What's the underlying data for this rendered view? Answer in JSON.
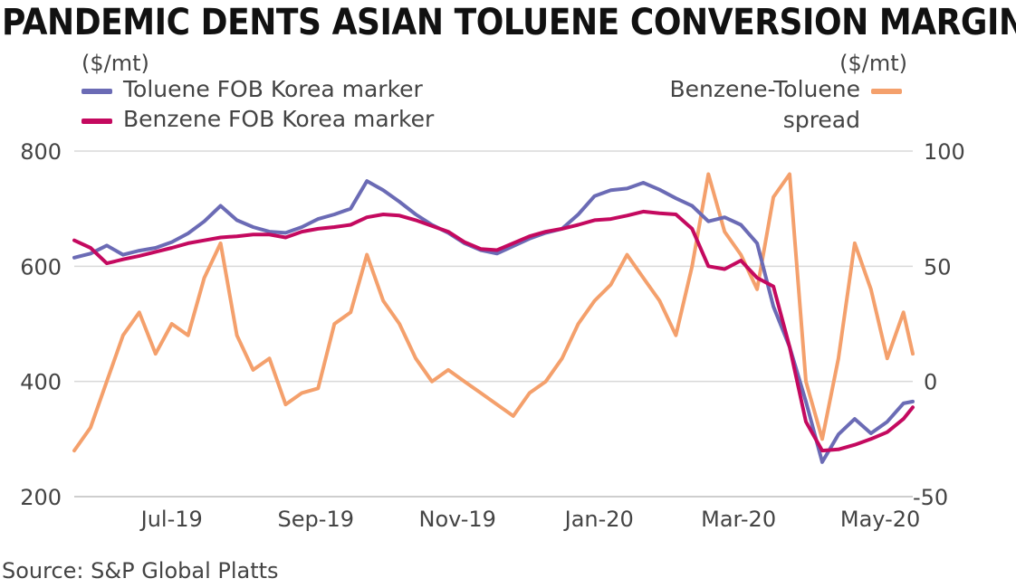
{
  "title": "PANDEMIC DENTS ASIAN TOLUENE CONVERSION MARGINS",
  "source": "Source: S&P Global Platts",
  "colors": {
    "toluene": "#6b6bb5",
    "benzene": "#c4095f",
    "spread": "#f4a06c",
    "grid": "#d9d9d9"
  },
  "chart_data": {
    "type": "line",
    "title": "PANDEMIC DENTS ASIAN TOLUENE CONVERSION MARGINS",
    "left_axis": {
      "unit": "($/mt)",
      "range": [
        200,
        800
      ],
      "ticks": [
        "200",
        "400",
        "600",
        "800"
      ]
    },
    "right_axis": {
      "unit": "($/mt)",
      "range": [
        -50,
        100
      ],
      "ticks": [
        "-50",
        "0",
        "50",
        "100"
      ]
    },
    "x_range": [
      "2019-05-20",
      "2020-05-15"
    ],
    "x_ticks": [
      {
        "label": "Jul-19",
        "date": "2019-07-01"
      },
      {
        "label": "Sep-19",
        "date": "2019-09-01"
      },
      {
        "label": "Nov-19",
        "date": "2019-11-01"
      },
      {
        "label": "Jan-20",
        "date": "2020-01-01"
      },
      {
        "label": "Mar-20",
        "date": "2020-03-01"
      },
      {
        "label": "May-20",
        "date": "2020-05-01"
      }
    ],
    "grid": "horizontal",
    "series": [
      {
        "name": "Toluene FOB Korea marker",
        "axis": "left",
        "points": [
          [
            "2019-05-20",
            615
          ],
          [
            "2019-05-27",
            622
          ],
          [
            "2019-06-03",
            636
          ],
          [
            "2019-06-10",
            620
          ],
          [
            "2019-06-17",
            627
          ],
          [
            "2019-06-24",
            632
          ],
          [
            "2019-07-01",
            642
          ],
          [
            "2019-07-08",
            657
          ],
          [
            "2019-07-15",
            678
          ],
          [
            "2019-07-22",
            705
          ],
          [
            "2019-07-29",
            680
          ],
          [
            "2019-08-05",
            668
          ],
          [
            "2019-08-12",
            660
          ],
          [
            "2019-08-19",
            658
          ],
          [
            "2019-08-26",
            668
          ],
          [
            "2019-09-02",
            682
          ],
          [
            "2019-09-09",
            690
          ],
          [
            "2019-09-16",
            700
          ],
          [
            "2019-09-23",
            748
          ],
          [
            "2019-09-30",
            732
          ],
          [
            "2019-10-07",
            712
          ],
          [
            "2019-10-14",
            690
          ],
          [
            "2019-10-21",
            672
          ],
          [
            "2019-10-28",
            658
          ],
          [
            "2019-11-04",
            640
          ],
          [
            "2019-11-11",
            628
          ],
          [
            "2019-11-18",
            622
          ],
          [
            "2019-11-25",
            635
          ],
          [
            "2019-12-02",
            648
          ],
          [
            "2019-12-09",
            658
          ],
          [
            "2019-12-16",
            665
          ],
          [
            "2019-12-23",
            690
          ],
          [
            "2019-12-30",
            722
          ],
          [
            "2020-01-06",
            732
          ],
          [
            "2020-01-13",
            735
          ],
          [
            "2020-01-20",
            745
          ],
          [
            "2020-01-27",
            733
          ],
          [
            "2020-02-03",
            718
          ],
          [
            "2020-02-10",
            705
          ],
          [
            "2020-02-17",
            678
          ],
          [
            "2020-02-24",
            685
          ],
          [
            "2020-03-02",
            672
          ],
          [
            "2020-03-09",
            640
          ],
          [
            "2020-03-16",
            530
          ],
          [
            "2020-03-23",
            460
          ],
          [
            "2020-03-30",
            365
          ],
          [
            "2020-04-06",
            260
          ],
          [
            "2020-04-13",
            308
          ],
          [
            "2020-04-20",
            335
          ],
          [
            "2020-04-27",
            310
          ],
          [
            "2020-05-04",
            330
          ],
          [
            "2020-05-11",
            362
          ],
          [
            "2020-05-15",
            365
          ]
        ]
      },
      {
        "name": "Benzene FOB Korea marker",
        "axis": "left",
        "points": [
          [
            "2019-05-20",
            645
          ],
          [
            "2019-05-27",
            632
          ],
          [
            "2019-06-03",
            605
          ],
          [
            "2019-06-10",
            612
          ],
          [
            "2019-06-17",
            618
          ],
          [
            "2019-06-24",
            625
          ],
          [
            "2019-07-01",
            632
          ],
          [
            "2019-07-08",
            640
          ],
          [
            "2019-07-15",
            645
          ],
          [
            "2019-07-22",
            650
          ],
          [
            "2019-07-29",
            652
          ],
          [
            "2019-08-05",
            655
          ],
          [
            "2019-08-12",
            655
          ],
          [
            "2019-08-19",
            650
          ],
          [
            "2019-08-26",
            660
          ],
          [
            "2019-09-02",
            665
          ],
          [
            "2019-09-09",
            668
          ],
          [
            "2019-09-16",
            672
          ],
          [
            "2019-09-23",
            685
          ],
          [
            "2019-09-30",
            690
          ],
          [
            "2019-10-07",
            688
          ],
          [
            "2019-10-14",
            680
          ],
          [
            "2019-10-21",
            670
          ],
          [
            "2019-10-28",
            660
          ],
          [
            "2019-11-04",
            642
          ],
          [
            "2019-11-11",
            630
          ],
          [
            "2019-11-18",
            628
          ],
          [
            "2019-11-25",
            640
          ],
          [
            "2019-12-02",
            652
          ],
          [
            "2019-12-09",
            660
          ],
          [
            "2019-12-16",
            665
          ],
          [
            "2019-12-23",
            672
          ],
          [
            "2019-12-30",
            680
          ],
          [
            "2020-01-06",
            682
          ],
          [
            "2020-01-13",
            688
          ],
          [
            "2020-01-20",
            695
          ],
          [
            "2020-01-27",
            692
          ],
          [
            "2020-02-03",
            690
          ],
          [
            "2020-02-10",
            665
          ],
          [
            "2020-02-17",
            600
          ],
          [
            "2020-02-24",
            595
          ],
          [
            "2020-03-02",
            610
          ],
          [
            "2020-03-09",
            580
          ],
          [
            "2020-03-16",
            565
          ],
          [
            "2020-03-23",
            460
          ],
          [
            "2020-03-30",
            330
          ],
          [
            "2020-04-06",
            280
          ],
          [
            "2020-04-13",
            282
          ],
          [
            "2020-04-20",
            290
          ],
          [
            "2020-04-27",
            300
          ],
          [
            "2020-05-04",
            312
          ],
          [
            "2020-05-11",
            335
          ],
          [
            "2020-05-15",
            355
          ]
        ]
      },
      {
        "name": "Benzene-Toluene spread",
        "axis": "right",
        "points": [
          [
            "2019-05-20",
            -30
          ],
          [
            "2019-05-27",
            -20
          ],
          [
            "2019-06-03",
            0
          ],
          [
            "2019-06-10",
            20
          ],
          [
            "2019-06-17",
            30
          ],
          [
            "2019-06-24",
            12
          ],
          [
            "2019-07-01",
            25
          ],
          [
            "2019-07-08",
            20
          ],
          [
            "2019-07-15",
            45
          ],
          [
            "2019-07-22",
            60
          ],
          [
            "2019-07-29",
            20
          ],
          [
            "2019-08-05",
            5
          ],
          [
            "2019-08-12",
            10
          ],
          [
            "2019-08-19",
            -10
          ],
          [
            "2019-08-26",
            -5
          ],
          [
            "2019-09-02",
            -3
          ],
          [
            "2019-09-09",
            25
          ],
          [
            "2019-09-16",
            30
          ],
          [
            "2019-09-23",
            55
          ],
          [
            "2019-09-30",
            35
          ],
          [
            "2019-10-07",
            25
          ],
          [
            "2019-10-14",
            10
          ],
          [
            "2019-10-21",
            0
          ],
          [
            "2019-10-28",
            5
          ],
          [
            "2019-11-04",
            0
          ],
          [
            "2019-11-11",
            -5
          ],
          [
            "2019-11-18",
            -10
          ],
          [
            "2019-11-25",
            -15
          ],
          [
            "2019-12-02",
            -5
          ],
          [
            "2019-12-09",
            0
          ],
          [
            "2019-12-16",
            10
          ],
          [
            "2019-12-23",
            25
          ],
          [
            "2019-12-30",
            35
          ],
          [
            "2020-01-06",
            42
          ],
          [
            "2020-01-13",
            55
          ],
          [
            "2020-01-20",
            45
          ],
          [
            "2020-01-27",
            35
          ],
          [
            "2020-02-03",
            20
          ],
          [
            "2020-02-10",
            50
          ],
          [
            "2020-02-17",
            90
          ],
          [
            "2020-02-24",
            65
          ],
          [
            "2020-03-02",
            55
          ],
          [
            "2020-03-09",
            40
          ],
          [
            "2020-03-16",
            80
          ],
          [
            "2020-03-23",
            90
          ],
          [
            "2020-03-30",
            0
          ],
          [
            "2020-04-06",
            -25
          ],
          [
            "2020-04-13",
            10
          ],
          [
            "2020-04-20",
            60
          ],
          [
            "2020-04-27",
            40
          ],
          [
            "2020-05-04",
            10
          ],
          [
            "2020-05-11",
            30
          ],
          [
            "2020-05-15",
            12
          ]
        ]
      }
    ]
  },
  "legend": [
    {
      "label": "Toluene FOB Korea marker"
    },
    {
      "label": "Benzene FOB Korea marker"
    },
    {
      "label_line1": "Benzene-Toluene",
      "label_line2": "spread"
    }
  ]
}
